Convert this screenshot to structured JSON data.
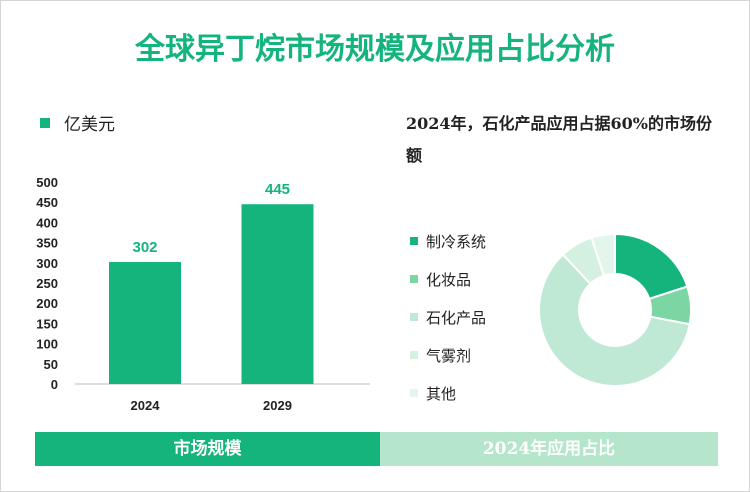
{
  "title": "全球异丁烷市场规模及应用占比分析",
  "colors": {
    "accent": "#14b47c",
    "footer_right_bg": "#b5e6cb"
  },
  "chart_data": [
    {
      "type": "bar",
      "legend": "亿美元",
      "categories": [
        "2024",
        "2029"
      ],
      "values": [
        302,
        445
      ],
      "ylim": [
        0,
        500
      ],
      "yticks": [
        0,
        50,
        100,
        150,
        200,
        250,
        300,
        350,
        400,
        450,
        500
      ],
      "color": "#14b47c"
    },
    {
      "type": "pie",
      "title": "2024年，石化产品应用占据60%的市场份额",
      "categories": [
        "制冷系统",
        "化妆品",
        "石化产品",
        "气雾剂",
        "其他"
      ],
      "values": [
        20,
        8,
        60,
        7,
        5
      ],
      "colors": [
        "#14b47c",
        "#7cd6a4",
        "#bfe9d4",
        "#d3f0e1",
        "#e4f6ec"
      ]
    }
  ],
  "footer": {
    "left": "市场规模",
    "right": "2024年应用占比"
  }
}
